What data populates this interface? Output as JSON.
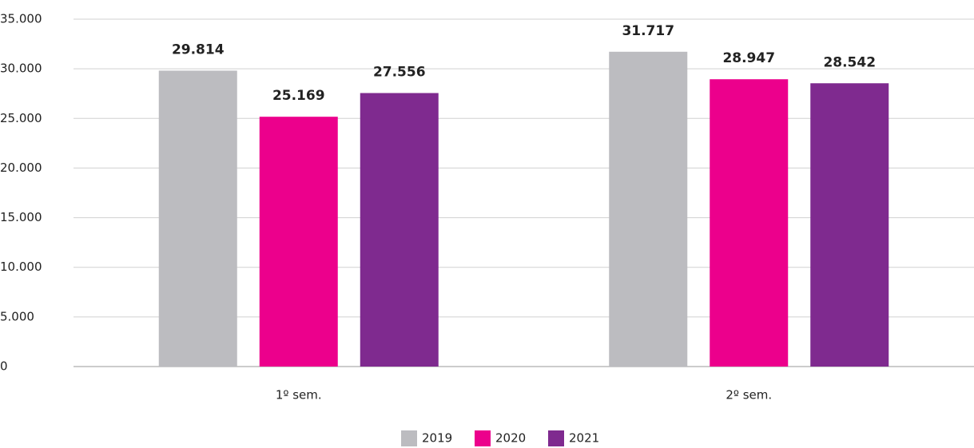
{
  "chart_data": {
    "type": "bar",
    "categories": [
      "1º sem.",
      "2º sem."
    ],
    "series": [
      {
        "name": "2019",
        "color": "#bcbcc0",
        "values": [
          29814,
          31717
        ],
        "value_labels": [
          "29.814",
          "31.717"
        ]
      },
      {
        "name": "2020",
        "color": "#ec008c",
        "values": [
          25169,
          28947
        ],
        "value_labels": [
          "25.169",
          "28.947"
        ]
      },
      {
        "name": "2021",
        "color": "#7f2a8f",
        "values": [
          27556,
          28542
        ],
        "value_labels": [
          "27.556",
          "28.542"
        ]
      }
    ],
    "ylim": [
      0,
      35000
    ],
    "yticks": [
      0,
      {
        "value": 5000,
        "label": "5.000"
      },
      {
        "value": 10000,
        "label": "10.000"
      },
      {
        "value": 15000,
        "label": "15.000"
      },
      {
        "value": 20000,
        "label": "20.000"
      },
      {
        "value": 25000,
        "label": "25.000"
      },
      {
        "value": 30000,
        "label": "30.000"
      },
      {
        "value": 35000,
        "label": "35.000"
      }
    ],
    "grid": true,
    "legend": "bottom"
  }
}
